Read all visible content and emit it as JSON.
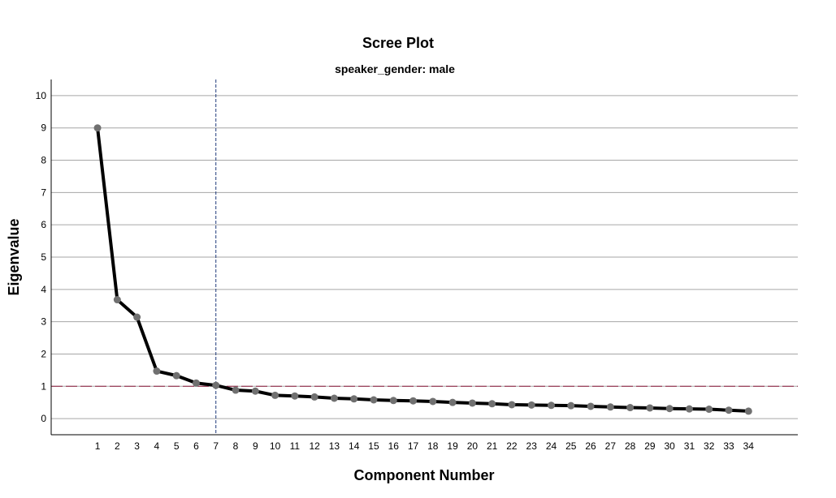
{
  "chart_data": {
    "type": "line",
    "title": "Scree Plot",
    "subtitle": "speaker_gender: male",
    "xlabel": "Component Number",
    "ylabel": "Eigenvalue",
    "x": [
      1,
      2,
      3,
      4,
      5,
      6,
      7,
      8,
      9,
      10,
      11,
      12,
      13,
      14,
      15,
      16,
      17,
      18,
      19,
      20,
      21,
      22,
      23,
      24,
      25,
      26,
      27,
      28,
      29,
      30,
      31,
      32,
      33,
      34
    ],
    "x_tick_labels": [
      "1",
      "2",
      "3",
      "4",
      "5",
      "6",
      "7",
      "8",
      "9",
      "10",
      "11",
      "12",
      "13",
      "14",
      "15",
      "16",
      "17",
      "18",
      "19",
      "20",
      "21",
      "22",
      "23",
      "24",
      "25",
      "26",
      "27",
      "28",
      "29",
      "30",
      "31",
      "32",
      "33",
      "34"
    ],
    "y_ticks": [
      "0",
      "1",
      "2",
      "3",
      "4",
      "5",
      "6",
      "7",
      "8",
      "9",
      "10"
    ],
    "series": [
      {
        "values": [
          9.0,
          3.68,
          3.14,
          1.47,
          1.33,
          1.1,
          1.03,
          0.88,
          0.85,
          0.72,
          0.7,
          0.67,
          0.63,
          0.61,
          0.58,
          0.56,
          0.55,
          0.53,
          0.5,
          0.48,
          0.46,
          0.43,
          0.42,
          0.41,
          0.4,
          0.38,
          0.36,
          0.34,
          0.33,
          0.31,
          0.3,
          0.29,
          0.26,
          0.23
        ],
        "color": "#000000",
        "marker_color": "#707070"
      }
    ],
    "ylim": [
      -0.5,
      10.5
    ],
    "xlim": [
      -1.35,
      36.5
    ],
    "grid": "horizontal",
    "reference_lines": [
      {
        "axis": "y",
        "value": 1,
        "color": "#8b1a3a",
        "style": "dash"
      },
      {
        "axis": "x",
        "value": 7,
        "color": "#1f3a7a",
        "style": "dash"
      }
    ],
    "colors": {
      "gridline": "#a6a6a6",
      "axis": "#000000"
    }
  }
}
